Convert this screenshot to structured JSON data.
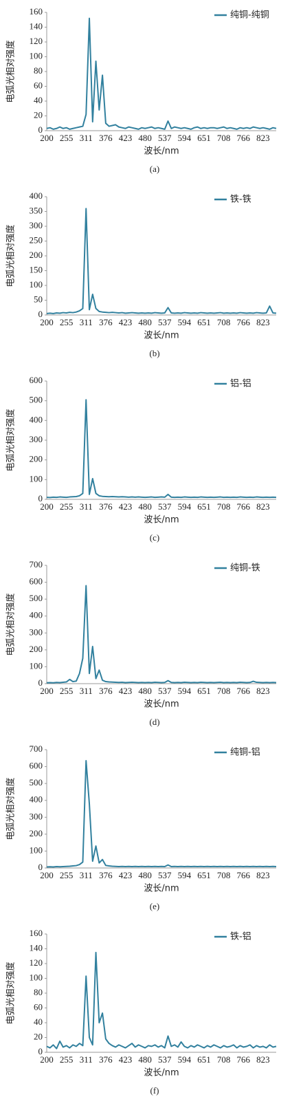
{
  "chart_data": [
    {
      "type": "line",
      "caption": "(a)",
      "y_label": "电弧光相对强度",
      "x_label": "波长/nm",
      "legend": "upper right",
      "ylim": [
        0,
        160
      ],
      "yticks": [
        0,
        20,
        40,
        60,
        80,
        100,
        120,
        140,
        160
      ],
      "categories": [
        "200",
        null,
        null,
        null,
        null,
        null,
        "255",
        null,
        null,
        null,
        null,
        null,
        "311",
        null,
        null,
        null,
        null,
        null,
        "376",
        null,
        null,
        null,
        null,
        null,
        "423",
        null,
        null,
        null,
        null,
        null,
        "480",
        null,
        null,
        null,
        null,
        null,
        "537",
        null,
        null,
        null,
        null,
        null,
        "594",
        null,
        null,
        null,
        null,
        null,
        "651",
        null,
        null,
        null,
        null,
        null,
        "708",
        null,
        null,
        null,
        null,
        null,
        "766",
        null,
        null,
        null,
        null,
        null,
        "823",
        null,
        null,
        null,
        null
      ],
      "series": [
        {
          "name": "纯铜-纯铜",
          "color": "#31809e",
          "values": [
            3,
            4,
            2,
            3,
            5,
            3,
            4,
            2,
            3,
            4,
            5,
            6,
            22,
            152,
            12,
            94,
            28,
            75,
            10,
            6,
            7,
            8,
            5,
            4,
            3,
            5,
            4,
            3,
            2,
            4,
            3,
            4,
            5,
            3,
            4,
            3,
            2,
            13,
            3,
            5,
            4,
            3,
            4,
            3,
            2,
            4,
            5,
            3,
            4,
            3,
            4,
            4,
            3,
            4,
            5,
            3,
            4,
            3,
            2,
            4,
            3,
            4,
            3,
            5,
            4,
            3,
            4,
            3,
            2,
            4,
            3
          ]
        }
      ]
    },
    {
      "type": "line",
      "caption": "(b)",
      "y_label": "电弧光相对强度",
      "x_label": "波长/nm",
      "legend": "upper right",
      "ylim": [
        0,
        400
      ],
      "yticks": [
        0,
        50,
        100,
        150,
        200,
        250,
        300,
        350,
        400
      ],
      "categories": [
        "200",
        null,
        null,
        null,
        null,
        null,
        "255",
        null,
        null,
        null,
        null,
        null,
        "311",
        null,
        null,
        null,
        null,
        null,
        "376",
        null,
        null,
        null,
        null,
        null,
        "423",
        null,
        null,
        null,
        null,
        null,
        "480",
        null,
        null,
        null,
        null,
        null,
        "537",
        null,
        null,
        null,
        null,
        null,
        "594",
        null,
        null,
        null,
        null,
        null,
        "651",
        null,
        null,
        null,
        null,
        null,
        "708",
        null,
        null,
        null,
        null,
        null,
        "766",
        null,
        null,
        null,
        null,
        null,
        "823",
        null,
        null,
        null,
        null
      ],
      "series": [
        {
          "name": "铁-铁",
          "color": "#31809e",
          "values": [
            5,
            6,
            5,
            7,
            6,
            8,
            7,
            9,
            8,
            10,
            14,
            22,
            360,
            18,
            70,
            22,
            12,
            10,
            9,
            8,
            9,
            8,
            7,
            8,
            6,
            7,
            8,
            7,
            6,
            7,
            6,
            7,
            6,
            8,
            7,
            6,
            7,
            25,
            7,
            6,
            7,
            6,
            8,
            7,
            6,
            7,
            6,
            8,
            7,
            6,
            7,
            6,
            7,
            8,
            6,
            7,
            6,
            7,
            6,
            8,
            7,
            6,
            7,
            6,
            8,
            7,
            6,
            7,
            30,
            7,
            6
          ]
        }
      ]
    },
    {
      "type": "line",
      "caption": "(c)",
      "y_label": "电弧光相对强度",
      "x_label": "波长/nm",
      "legend": "upper right",
      "ylim": [
        0,
        600
      ],
      "yticks": [
        0,
        100,
        200,
        300,
        400,
        500,
        600
      ],
      "categories": [
        "200",
        null,
        null,
        null,
        null,
        null,
        "255",
        null,
        null,
        null,
        null,
        null,
        "311",
        null,
        null,
        null,
        null,
        null,
        "376",
        null,
        null,
        null,
        null,
        null,
        "423",
        null,
        null,
        null,
        null,
        null,
        "480",
        null,
        null,
        null,
        null,
        null,
        "537",
        null,
        null,
        null,
        null,
        null,
        "594",
        null,
        null,
        null,
        null,
        null,
        "651",
        null,
        null,
        null,
        null,
        null,
        "708",
        null,
        null,
        null,
        null,
        null,
        "766",
        null,
        null,
        null,
        null,
        null,
        "823",
        null,
        null,
        null,
        null
      ],
      "series": [
        {
          "name": "铝-铝",
          "color": "#31809e",
          "values": [
            10,
            9,
            11,
            10,
            12,
            11,
            10,
            12,
            13,
            14,
            18,
            30,
            505,
            25,
            105,
            30,
            18,
            15,
            14,
            13,
            14,
            13,
            12,
            13,
            12,
            11,
            12,
            11,
            12,
            11,
            10,
            11,
            12,
            10,
            11,
            12,
            11,
            25,
            11,
            10,
            11,
            10,
            12,
            11,
            10,
            11,
            10,
            12,
            11,
            10,
            11,
            10,
            11,
            12,
            10,
            11,
            10,
            11,
            10,
            12,
            11,
            10,
            11,
            10,
            12,
            11,
            10,
            11,
            10,
            11,
            10
          ]
        }
      ]
    },
    {
      "type": "line",
      "caption": "(d)",
      "y_label": "电弧光相对强度",
      "x_label": "波长/nm",
      "legend": "upper right",
      "ylim": [
        0,
        700
      ],
      "yticks": [
        0,
        100,
        200,
        300,
        400,
        500,
        600,
        700
      ],
      "categories": [
        "200",
        null,
        null,
        null,
        null,
        null,
        "255",
        null,
        null,
        null,
        null,
        null,
        "311",
        null,
        null,
        null,
        null,
        null,
        "376",
        null,
        null,
        null,
        null,
        null,
        "423",
        null,
        null,
        null,
        null,
        null,
        "480",
        null,
        null,
        null,
        null,
        null,
        "537",
        null,
        null,
        null,
        null,
        null,
        "594",
        null,
        null,
        null,
        null,
        null,
        "651",
        null,
        null,
        null,
        null,
        null,
        "708",
        null,
        null,
        null,
        null,
        null,
        "766",
        null,
        null,
        null,
        null,
        null,
        "823",
        null,
        null,
        null,
        null
      ],
      "series": [
        {
          "name": "纯铜-铁",
          "color": "#31809e",
          "values": [
            5,
            6,
            5,
            7,
            6,
            8,
            10,
            25,
            12,
            15,
            60,
            150,
            580,
            60,
            220,
            30,
            80,
            20,
            12,
            10,
            9,
            8,
            7,
            8,
            6,
            7,
            8,
            7,
            6,
            7,
            6,
            7,
            6,
            8,
            7,
            6,
            7,
            18,
            7,
            6,
            7,
            6,
            8,
            7,
            6,
            7,
            6,
            8,
            7,
            6,
            7,
            6,
            7,
            8,
            6,
            7,
            6,
            7,
            6,
            8,
            7,
            6,
            7,
            14,
            8,
            7,
            6,
            7,
            6,
            7,
            6
          ]
        }
      ]
    },
    {
      "type": "line",
      "caption": "(e)",
      "y_label": "电弧光相对强度",
      "x_label": "波长/nm",
      "legend": "upper right",
      "ylim": [
        0,
        700
      ],
      "yticks": [
        0,
        100,
        200,
        300,
        400,
        500,
        600,
        700
      ],
      "categories": [
        "200",
        null,
        null,
        null,
        null,
        null,
        "255",
        null,
        null,
        null,
        null,
        null,
        "311",
        null,
        null,
        null,
        null,
        null,
        "376",
        null,
        null,
        null,
        null,
        null,
        "423",
        null,
        null,
        null,
        null,
        null,
        "480",
        null,
        null,
        null,
        null,
        null,
        "537",
        null,
        null,
        null,
        null,
        null,
        "594",
        null,
        null,
        null,
        null,
        null,
        "651",
        null,
        null,
        null,
        null,
        null,
        "708",
        null,
        null,
        null,
        null,
        null,
        "766",
        null,
        null,
        null,
        null,
        null,
        "823",
        null,
        null,
        null,
        null
      ],
      "series": [
        {
          "name": "纯铜-铝",
          "color": "#31809e",
          "values": [
            6,
            7,
            6,
            8,
            7,
            8,
            9,
            10,
            12,
            14,
            20,
            35,
            635,
            380,
            40,
            130,
            30,
            50,
            15,
            12,
            10,
            9,
            8,
            9,
            8,
            9,
            8,
            9,
            8,
            9,
            8,
            9,
            8,
            9,
            8,
            9,
            8,
            18,
            8,
            9,
            8,
            9,
            8,
            9,
            8,
            9,
            8,
            9,
            8,
            9,
            8,
            9,
            8,
            9,
            8,
            9,
            8,
            9,
            8,
            9,
            8,
            9,
            8,
            9,
            8,
            9,
            8,
            9,
            8,
            9,
            8
          ]
        }
      ]
    },
    {
      "type": "line",
      "caption": "(f)",
      "y_label": "电弧光相对强度",
      "x_label": "波长/nm",
      "legend": "upper right",
      "ylim": [
        0,
        160
      ],
      "yticks": [
        0,
        20,
        40,
        60,
        80,
        100,
        120,
        140,
        160
      ],
      "categories": [
        "200",
        null,
        null,
        null,
        null,
        null,
        "255",
        null,
        null,
        null,
        null,
        null,
        "311",
        null,
        null,
        null,
        null,
        null,
        "376",
        null,
        null,
        null,
        null,
        null,
        "423",
        null,
        null,
        null,
        null,
        null,
        "480",
        null,
        null,
        null,
        null,
        null,
        "537",
        null,
        null,
        null,
        null,
        null,
        "594",
        null,
        null,
        null,
        null,
        null,
        "651",
        null,
        null,
        null,
        null,
        null,
        "708",
        null,
        null,
        null,
        null,
        null,
        "766",
        null,
        null,
        null,
        null,
        null,
        "823",
        null,
        null,
        null,
        null
      ],
      "series": [
        {
          "name": "铁-铝",
          "color": "#31809e",
          "values": [
            8,
            6,
            10,
            5,
            15,
            7,
            9,
            6,
            10,
            8,
            12,
            9,
            103,
            20,
            10,
            135,
            40,
            53,
            18,
            12,
            9,
            7,
            10,
            8,
            6,
            9,
            12,
            7,
            10,
            8,
            6,
            9,
            8,
            10,
            7,
            9,
            6,
            22,
            8,
            10,
            7,
            14,
            8,
            6,
            9,
            7,
            10,
            8,
            6,
            9,
            7,
            10,
            8,
            6,
            9,
            7,
            8,
            10,
            6,
            9,
            7,
            8,
            10,
            6,
            9,
            7,
            8,
            6,
            10,
            7,
            8
          ]
        }
      ]
    }
  ]
}
